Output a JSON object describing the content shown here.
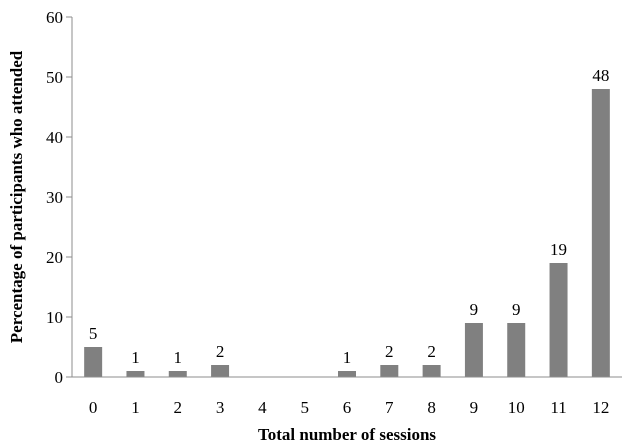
{
  "chart_data": {
    "type": "bar",
    "title": "",
    "xlabel": "Total number of sessions",
    "ylabel": "Percentage of participants who attended",
    "categories": [
      "0",
      "1",
      "2",
      "3",
      "4",
      "5",
      "6",
      "7",
      "8",
      "9",
      "10",
      "11",
      "12"
    ],
    "values": [
      5,
      1,
      1,
      2,
      0,
      0,
      1,
      2,
      2,
      9,
      9,
      19,
      48
    ],
    "data_labels": [
      "5",
      "1",
      "1",
      "2",
      "",
      "",
      "1",
      "2",
      "2",
      "9",
      "9",
      "19",
      "48"
    ],
    "ylim": [
      0,
      60
    ],
    "yticks": [
      0,
      10,
      20,
      30,
      40,
      50,
      60
    ],
    "grid": false,
    "legend": "none",
    "colors": {
      "bar": "#808080",
      "axis": "#8c8c8c",
      "text": "#000000"
    }
  }
}
